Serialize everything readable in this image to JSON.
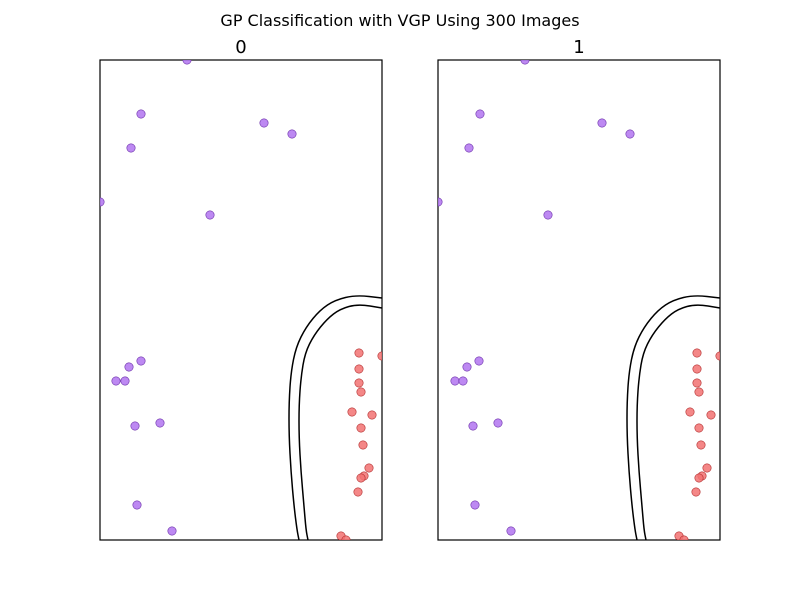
{
  "chart_data": {
    "type": "scatter",
    "title": "GP Classification with VGP Using 300 Images",
    "grid": false,
    "panel_titles": [
      "0",
      "1"
    ],
    "class_colors": {
      "class_a": "#b274f0",
      "class_a_edge": "#6a2fa8",
      "class_b": "#f27272",
      "class_b_edge": "#b22c2c",
      "boundary": "#000000"
    },
    "panels": [
      {
        "name": "0",
        "xlim": [
          0,
          282
        ],
        "ylim": [
          0,
          480
        ],
        "points": [
          {
            "x": 87,
            "y": 480,
            "class": "class_a"
          },
          {
            "x": 41,
            "y": 426,
            "class": "class_a"
          },
          {
            "x": 164,
            "y": 417,
            "class": "class_a"
          },
          {
            "x": 192,
            "y": 406,
            "class": "class_a"
          },
          {
            "x": 31,
            "y": 392,
            "class": "class_a"
          },
          {
            "x": 0,
            "y": 338,
            "class": "class_a"
          },
          {
            "x": 110,
            "y": 325,
            "class": "class_a"
          },
          {
            "x": 41,
            "y": 179,
            "class": "class_a"
          },
          {
            "x": 29,
            "y": 173,
            "class": "class_a"
          },
          {
            "x": 16,
            "y": 159,
            "class": "class_a"
          },
          {
            "x": 25,
            "y": 159,
            "class": "class_a"
          },
          {
            "x": 35,
            "y": 114,
            "class": "class_a"
          },
          {
            "x": 60,
            "y": 117,
            "class": "class_a"
          },
          {
            "x": 37,
            "y": 35,
            "class": "class_a"
          },
          {
            "x": 72,
            "y": 9,
            "class": "class_a"
          },
          {
            "x": 259,
            "y": 187,
            "class": "class_b"
          },
          {
            "x": 282,
            "y": 184,
            "class": "class_b"
          },
          {
            "x": 259,
            "y": 171,
            "class": "class_b"
          },
          {
            "x": 259,
            "y": 157,
            "class": "class_b"
          },
          {
            "x": 261,
            "y": 148,
            "class": "class_b"
          },
          {
            "x": 252,
            "y": 128,
            "class": "class_b"
          },
          {
            "x": 272,
            "y": 125,
            "class": "class_b"
          },
          {
            "x": 261,
            "y": 112,
            "class": "class_b"
          },
          {
            "x": 263,
            "y": 95,
            "class": "class_b"
          },
          {
            "x": 269,
            "y": 72,
            "class": "class_b"
          },
          {
            "x": 264,
            "y": 64,
            "class": "class_b"
          },
          {
            "x": 261,
            "y": 62,
            "class": "class_b"
          },
          {
            "x": 258,
            "y": 48,
            "class": "class_b"
          },
          {
            "x": 241,
            "y": 4,
            "class": "class_b"
          },
          {
            "x": 246,
            "y": 0,
            "class": "class_b"
          }
        ],
        "boundaries": [
          {
            "points": [
              [
                282,
                242
              ],
              [
                256,
                245
              ],
              [
                235,
                240
              ],
              [
                220,
                230
              ],
              [
                206,
                213
              ],
              [
                196,
                193
              ],
              [
                191,
                168
              ],
              [
                189,
                138
              ],
              [
                189,
                105
              ],
              [
                191,
                68
              ],
              [
                194,
                34
              ],
              [
                197,
                10
              ],
              [
                199,
                0
              ]
            ]
          },
          {
            "points": [
              [
                282,
                232
              ],
              [
                258,
                236
              ],
              [
                240,
                231
              ],
              [
                227,
                221
              ],
              [
                214,
                205
              ],
              [
                205,
                187
              ],
              [
                201,
                163
              ],
              [
                199,
                135
              ],
              [
                199,
                103
              ],
              [
                201,
                68
              ],
              [
                204,
                34
              ],
              [
                206,
                10
              ],
              [
                208,
                0
              ]
            ]
          }
        ]
      },
      {
        "name": "1",
        "xlim": [
          0,
          282
        ],
        "ylim": [
          0,
          480
        ],
        "points": [
          {
            "x": 87,
            "y": 480,
            "class": "class_a"
          },
          {
            "x": 42,
            "y": 426,
            "class": "class_a"
          },
          {
            "x": 164,
            "y": 417,
            "class": "class_a"
          },
          {
            "x": 192,
            "y": 406,
            "class": "class_a"
          },
          {
            "x": 31,
            "y": 392,
            "class": "class_a"
          },
          {
            "x": 0,
            "y": 338,
            "class": "class_a"
          },
          {
            "x": 110,
            "y": 325,
            "class": "class_a"
          },
          {
            "x": 41,
            "y": 179,
            "class": "class_a"
          },
          {
            "x": 29,
            "y": 173,
            "class": "class_a"
          },
          {
            "x": 17,
            "y": 159,
            "class": "class_a"
          },
          {
            "x": 25,
            "y": 159,
            "class": "class_a"
          },
          {
            "x": 35,
            "y": 114,
            "class": "class_a"
          },
          {
            "x": 60,
            "y": 117,
            "class": "class_a"
          },
          {
            "x": 37,
            "y": 35,
            "class": "class_a"
          },
          {
            "x": 73,
            "y": 9,
            "class": "class_a"
          },
          {
            "x": 259,
            "y": 187,
            "class": "class_b"
          },
          {
            "x": 282,
            "y": 184,
            "class": "class_b"
          },
          {
            "x": 259,
            "y": 171,
            "class": "class_b"
          },
          {
            "x": 259,
            "y": 157,
            "class": "class_b"
          },
          {
            "x": 261,
            "y": 148,
            "class": "class_b"
          },
          {
            "x": 252,
            "y": 128,
            "class": "class_b"
          },
          {
            "x": 273,
            "y": 125,
            "class": "class_b"
          },
          {
            "x": 261,
            "y": 112,
            "class": "class_b"
          },
          {
            "x": 263,
            "y": 95,
            "class": "class_b"
          },
          {
            "x": 269,
            "y": 72,
            "class": "class_b"
          },
          {
            "x": 264,
            "y": 64,
            "class": "class_b"
          },
          {
            "x": 261,
            "y": 62,
            "class": "class_b"
          },
          {
            "x": 258,
            "y": 48,
            "class": "class_b"
          },
          {
            "x": 241,
            "y": 4,
            "class": "class_b"
          },
          {
            "x": 246,
            "y": 0,
            "class": "class_b"
          }
        ],
        "boundaries": [
          {
            "points": [
              [
                282,
                242
              ],
              [
                256,
                245
              ],
              [
                235,
                240
              ],
              [
                220,
                230
              ],
              [
                206,
                213
              ],
              [
                196,
                193
              ],
              [
                191,
                168
              ],
              [
                189,
                138
              ],
              [
                189,
                105
              ],
              [
                191,
                68
              ],
              [
                194,
                34
              ],
              [
                197,
                10
              ],
              [
                199,
                0
              ]
            ]
          },
          {
            "points": [
              [
                282,
                232
              ],
              [
                258,
                236
              ],
              [
                240,
                231
              ],
              [
                227,
                221
              ],
              [
                214,
                205
              ],
              [
                205,
                187
              ],
              [
                201,
                163
              ],
              [
                199,
                135
              ],
              [
                199,
                103
              ],
              [
                201,
                68
              ],
              [
                204,
                34
              ],
              [
                206,
                10
              ],
              [
                208,
                0
              ]
            ]
          }
        ]
      }
    ]
  }
}
